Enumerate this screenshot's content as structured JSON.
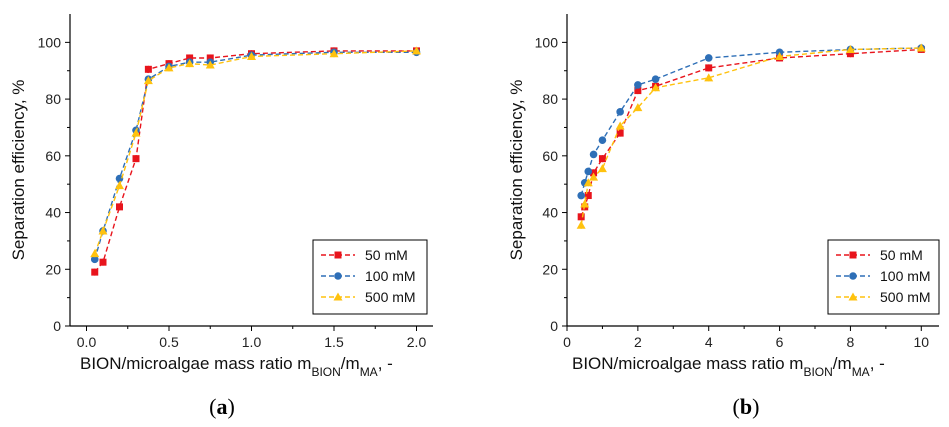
{
  "chart_data": [
    {
      "type": "line",
      "panel_label": "a",
      "xlabel": "BION/microalgae mass ratio m",
      "xlabel_sub1": "BION",
      "xlabel_mid": "/m",
      "xlabel_sub2": "MA",
      "xlabel_end": ", -",
      "ylabel": "Separation efficiency, %",
      "xlim": [
        -0.1,
        2.1
      ],
      "ylim": [
        0,
        110
      ],
      "xticks": [
        0.0,
        0.5,
        1.0,
        1.5,
        2.0
      ],
      "xtick_labels": [
        "0.0",
        "0.5",
        "1.0",
        "1.5",
        "2.0"
      ],
      "yticks": [
        0,
        20,
        40,
        60,
        80,
        100
      ],
      "ytick_labels": [
        "0",
        "20",
        "40",
        "60",
        "80",
        "100"
      ],
      "legend_position": "lower-right",
      "series": [
        {
          "name": "50 mM",
          "color": "#e8141c",
          "marker": "square",
          "x": [
            0.05,
            0.1,
            0.2,
            0.3,
            0.375,
            0.5,
            0.625,
            0.75,
            1.0,
            1.5,
            2.0
          ],
          "y": [
            19,
            22.5,
            42,
            59,
            90.5,
            92.5,
            94.5,
            94.5,
            96,
            97,
            97
          ]
        },
        {
          "name": "100 mM",
          "color": "#2e6fb7",
          "marker": "circle",
          "x": [
            0.05,
            0.1,
            0.2,
            0.3,
            0.375,
            0.5,
            0.625,
            0.75,
            1.0,
            1.5,
            2.0
          ],
          "y": [
            23.5,
            33.5,
            52,
            69,
            87,
            91.5,
            93,
            93,
            95.5,
            96.5,
            96.5
          ]
        },
        {
          "name": "500 mM",
          "color": "#ffc20e",
          "marker": "triangle",
          "x": [
            0.05,
            0.1,
            0.2,
            0.3,
            0.375,
            0.5,
            0.625,
            0.75,
            1.0,
            1.5,
            2.0
          ],
          "y": [
            25.5,
            33.5,
            49.5,
            68,
            86.5,
            91,
            92.5,
            92,
            95,
            96,
            97
          ]
        }
      ]
    },
    {
      "type": "line",
      "panel_label": "b",
      "xlabel": "BION/microalgae mass ratio m",
      "xlabel_sub1": "BION",
      "xlabel_mid": "/m",
      "xlabel_sub2": "MA",
      "xlabel_end": ", -",
      "ylabel": "Separation efficiency, %",
      "xlim": [
        0,
        10.5
      ],
      "ylim": [
        0,
        110
      ],
      "xticks": [
        0,
        2,
        4,
        6,
        8,
        10
      ],
      "xtick_labels": [
        "0",
        "2",
        "4",
        "6",
        "8",
        "10"
      ],
      "yticks": [
        0,
        20,
        40,
        60,
        80,
        100
      ],
      "ytick_labels": [
        "0",
        "20",
        "40",
        "60",
        "80",
        "100"
      ],
      "legend_position": "lower-right",
      "series": [
        {
          "name": "50 mM",
          "color": "#e8141c",
          "marker": "square",
          "x": [
            0.4,
            0.5,
            0.6,
            0.75,
            1.0,
            1.5,
            2.0,
            2.5,
            4.0,
            6.0,
            8.0,
            10.0
          ],
          "y": [
            38.5,
            42,
            46,
            54,
            59,
            68,
            83,
            84.5,
            91,
            94.5,
            96,
            97.5
          ]
        },
        {
          "name": "100 mM",
          "color": "#2e6fb7",
          "marker": "circle",
          "x": [
            0.4,
            0.5,
            0.6,
            0.75,
            1.0,
            1.5,
            2.0,
            2.5,
            4.0,
            6.0,
            8.0,
            10.0
          ],
          "y": [
            46,
            50.5,
            54.5,
            60.5,
            65.5,
            75.5,
            85,
            87,
            94.5,
            96.5,
            97.5,
            98
          ]
        },
        {
          "name": "500 mM",
          "color": "#ffc20e",
          "marker": "triangle",
          "x": [
            0.4,
            0.5,
            0.6,
            0.75,
            1.0,
            1.5,
            2.0,
            2.5,
            4.0,
            6.0,
            8.0,
            10.0
          ],
          "y": [
            35.5,
            43,
            50.5,
            52.5,
            55.5,
            70.5,
            77,
            84,
            87.5,
            95,
            97.5,
            98
          ]
        }
      ]
    }
  ]
}
